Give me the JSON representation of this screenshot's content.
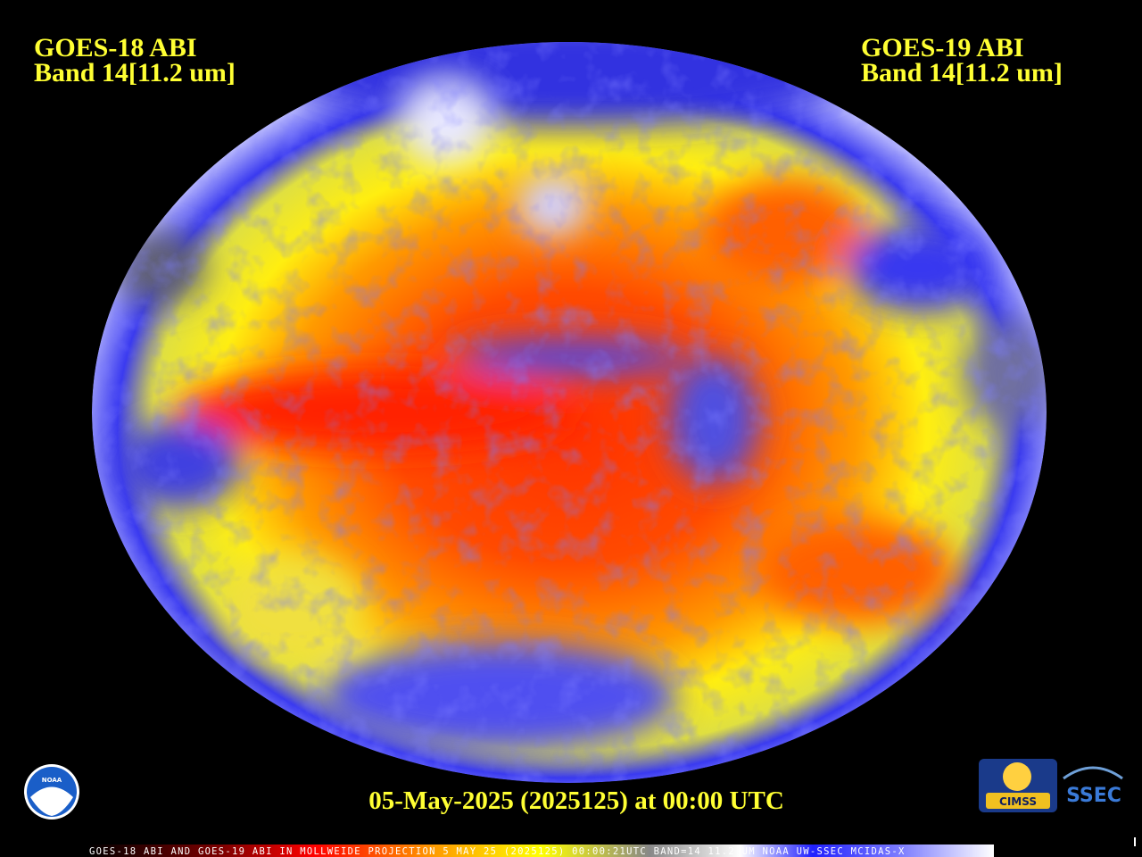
{
  "header": {
    "left": {
      "satellite": "GOES-18 ABI",
      "band": "Band 14[11.2 um]"
    },
    "right": {
      "satellite": "GOES-19 ABI",
      "band": "Band 14[11.2 um]"
    }
  },
  "footer": {
    "timestamp": "05-May-2025 (2025125) at 00:00 UTC"
  },
  "status_bar": {
    "text": "GOES-18 ABI AND GOES-19 ABI IN MOLLWEIDE PROJECTION 5 MAY 25 (2025125) 00:00:21UTC BAND=14 11.2 UM NOAA UW-SSEC MCIDAS-X"
  },
  "logos": {
    "noaa": "NOAA",
    "cimss": "CIMSS",
    "ssec": "SSEC"
  }
}
